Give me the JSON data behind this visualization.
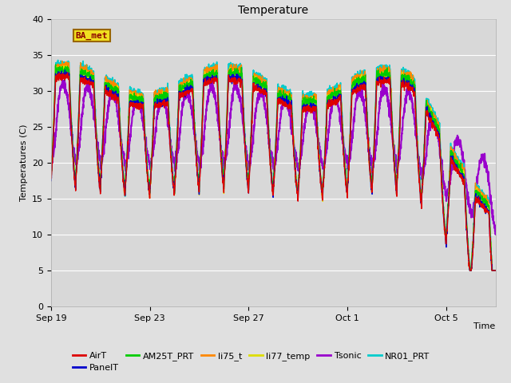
{
  "title": "Temperature",
  "xlabel": "Time",
  "ylabel": "Temperatures (C)",
  "ylim": [
    0,
    40
  ],
  "yticks": [
    0,
    5,
    10,
    15,
    20,
    25,
    30,
    35,
    40
  ],
  "n_days": 18,
  "pts_per_day": 144,
  "xtick_labels": [
    "Sep 19",
    "Sep 23",
    "Sep 27",
    "Oct 1",
    "Oct 5"
  ],
  "xtick_positions": [
    0,
    4,
    8,
    12,
    16
  ],
  "series": {
    "AirT": {
      "color": "#dd0000",
      "lw": 1.0
    },
    "PanelT": {
      "color": "#0000cc",
      "lw": 1.0
    },
    "AM25T_PRT": {
      "color": "#00cc00",
      "lw": 1.0
    },
    "li75_t": {
      "color": "#ff8800",
      "lw": 1.0
    },
    "li77_temp": {
      "color": "#dddd00",
      "lw": 1.0
    },
    "Tsonic": {
      "color": "#9900cc",
      "lw": 1.5
    },
    "NR01_PRT": {
      "color": "#00cccc",
      "lw": 1.2
    }
  },
  "annotation_text": "BA_met",
  "bg_color": "#e0e0e0",
  "plot_bg_color": "#d8d8d8",
  "grid_color": "#ffffff"
}
